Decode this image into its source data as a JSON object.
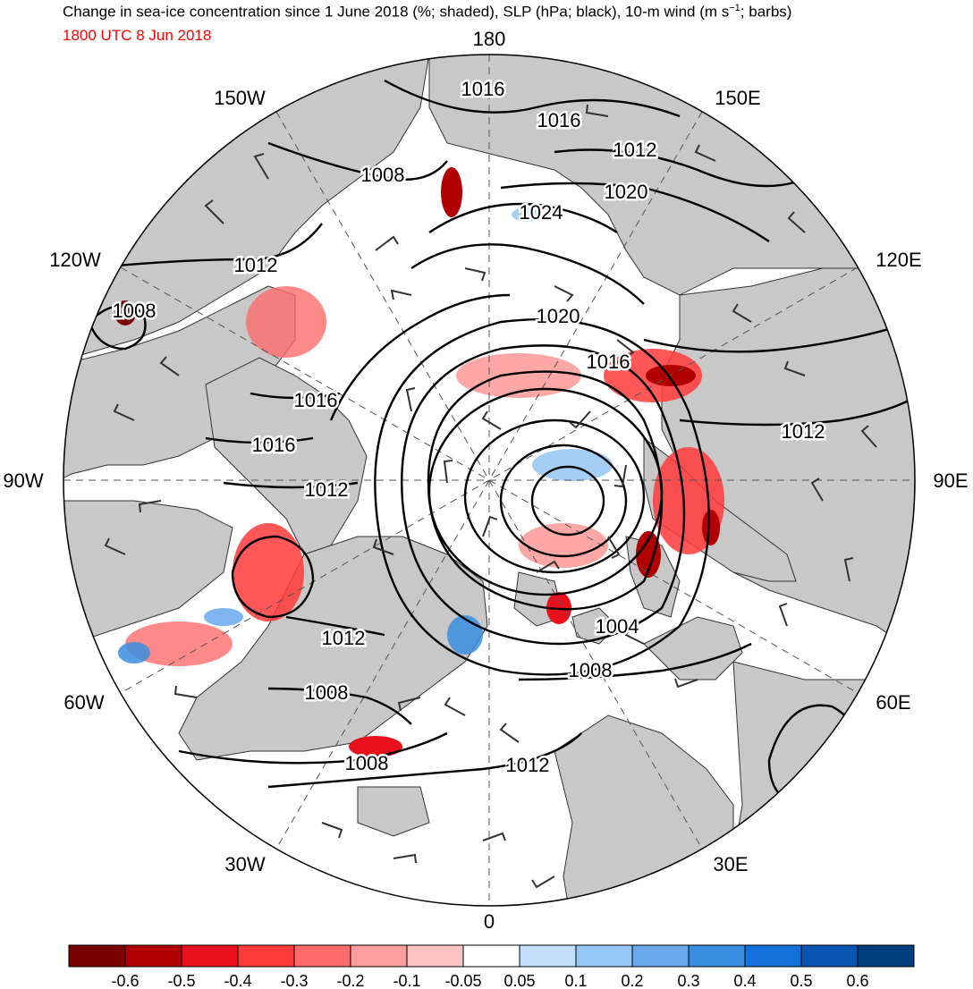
{
  "title_main": "Change in sea-ice concentration since 1 June 2018 (%; shaded), SLP (hPa; black), 10-m wind (m s",
  "title_sup": "−1",
  "title_end": "; barbs)",
  "subtitle": "1800 UTC 8 Jun 2018",
  "colors": {
    "subtitle": "#ff0000",
    "land": "#c8c8c8",
    "contour": "#000000"
  },
  "longitude_labels": [
    {
      "id": "180",
      "text": "180"
    },
    {
      "id": "150e",
      "text": "150E"
    },
    {
      "id": "120e",
      "text": "120E"
    },
    {
      "id": "90e",
      "text": "90E"
    },
    {
      "id": "60e",
      "text": "60E"
    },
    {
      "id": "30e",
      "text": "30E"
    },
    {
      "id": "0",
      "text": "0"
    },
    {
      "id": "30w",
      "text": "30W"
    },
    {
      "id": "60w",
      "text": "60W"
    },
    {
      "id": "90w",
      "text": "90W"
    },
    {
      "id": "120w",
      "text": "120W"
    },
    {
      "id": "150w",
      "text": "150W"
    }
  ],
  "contour_labels": [
    {
      "text": "1016"
    },
    {
      "text": "1016"
    },
    {
      "text": "1012"
    },
    {
      "text": "1020"
    },
    {
      "text": "1024"
    },
    {
      "text": "1008"
    },
    {
      "text": "1012"
    },
    {
      "text": "1008"
    },
    {
      "text": "1020"
    },
    {
      "text": "1016"
    },
    {
      "text": "1016"
    },
    {
      "text": "1016"
    },
    {
      "text": "1012"
    },
    {
      "text": "1012"
    },
    {
      "text": "1004"
    },
    {
      "text": "1008"
    },
    {
      "text": "1012"
    },
    {
      "text": "1008"
    },
    {
      "text": "1008"
    },
    {
      "text": "1012"
    }
  ],
  "colorbar": {
    "colors": [
      "#7a0000",
      "#b00000",
      "#e8111b",
      "#ff3a3a",
      "#fd6b6b",
      "#fd9d9d",
      "#fdc3c3",
      "#ffffff",
      "#c1e0fb",
      "#95c6f5",
      "#6aa9ec",
      "#3a8ee1",
      "#1471db",
      "#0a54b4",
      "#003d7c"
    ],
    "labels": [
      "-0.6",
      "-0.5",
      "-0.4",
      "-0.3",
      "-0.2",
      "-0.1",
      "-0.05",
      "0.05",
      "0.1",
      "0.2",
      "0.3",
      "0.4",
      "0.5",
      "0.6"
    ]
  }
}
